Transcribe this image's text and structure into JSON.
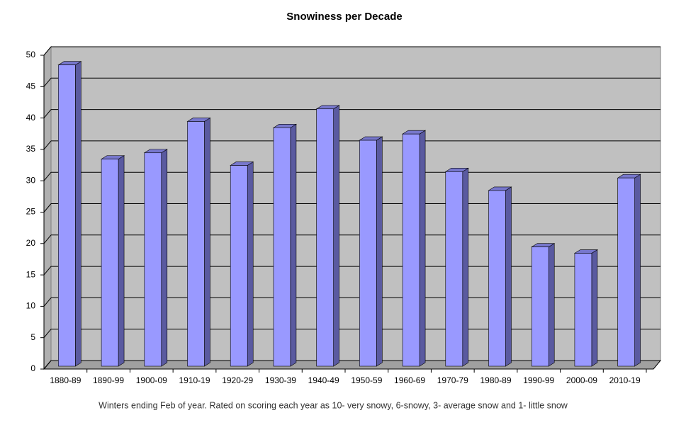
{
  "chart_data": {
    "type": "bar3d",
    "title": "Snowiness per Decade",
    "categories": [
      "1880-89",
      "1890-99",
      "1900-09",
      "1910-19",
      "1920-29",
      "1930-39",
      "1940-49",
      "1950-59",
      "1960-69",
      "1970-79",
      "1980-89",
      "1990-99",
      "2000-09",
      "2010-19"
    ],
    "values": [
      48,
      33,
      34,
      39,
      32,
      38,
      41,
      36,
      37,
      31,
      28,
      19,
      18,
      30
    ],
    "color": "#9999ff",
    "ylim": [
      0,
      50
    ],
    "yticks": [
      0,
      5,
      10,
      15,
      20,
      25,
      30,
      35,
      40,
      45,
      50
    ],
    "grid": true,
    "caption": "Winters ending Feb of year.  Rated on scoring each year as 10- very snowy, 6-snowy, 3- average snow and 1- little snow"
  }
}
